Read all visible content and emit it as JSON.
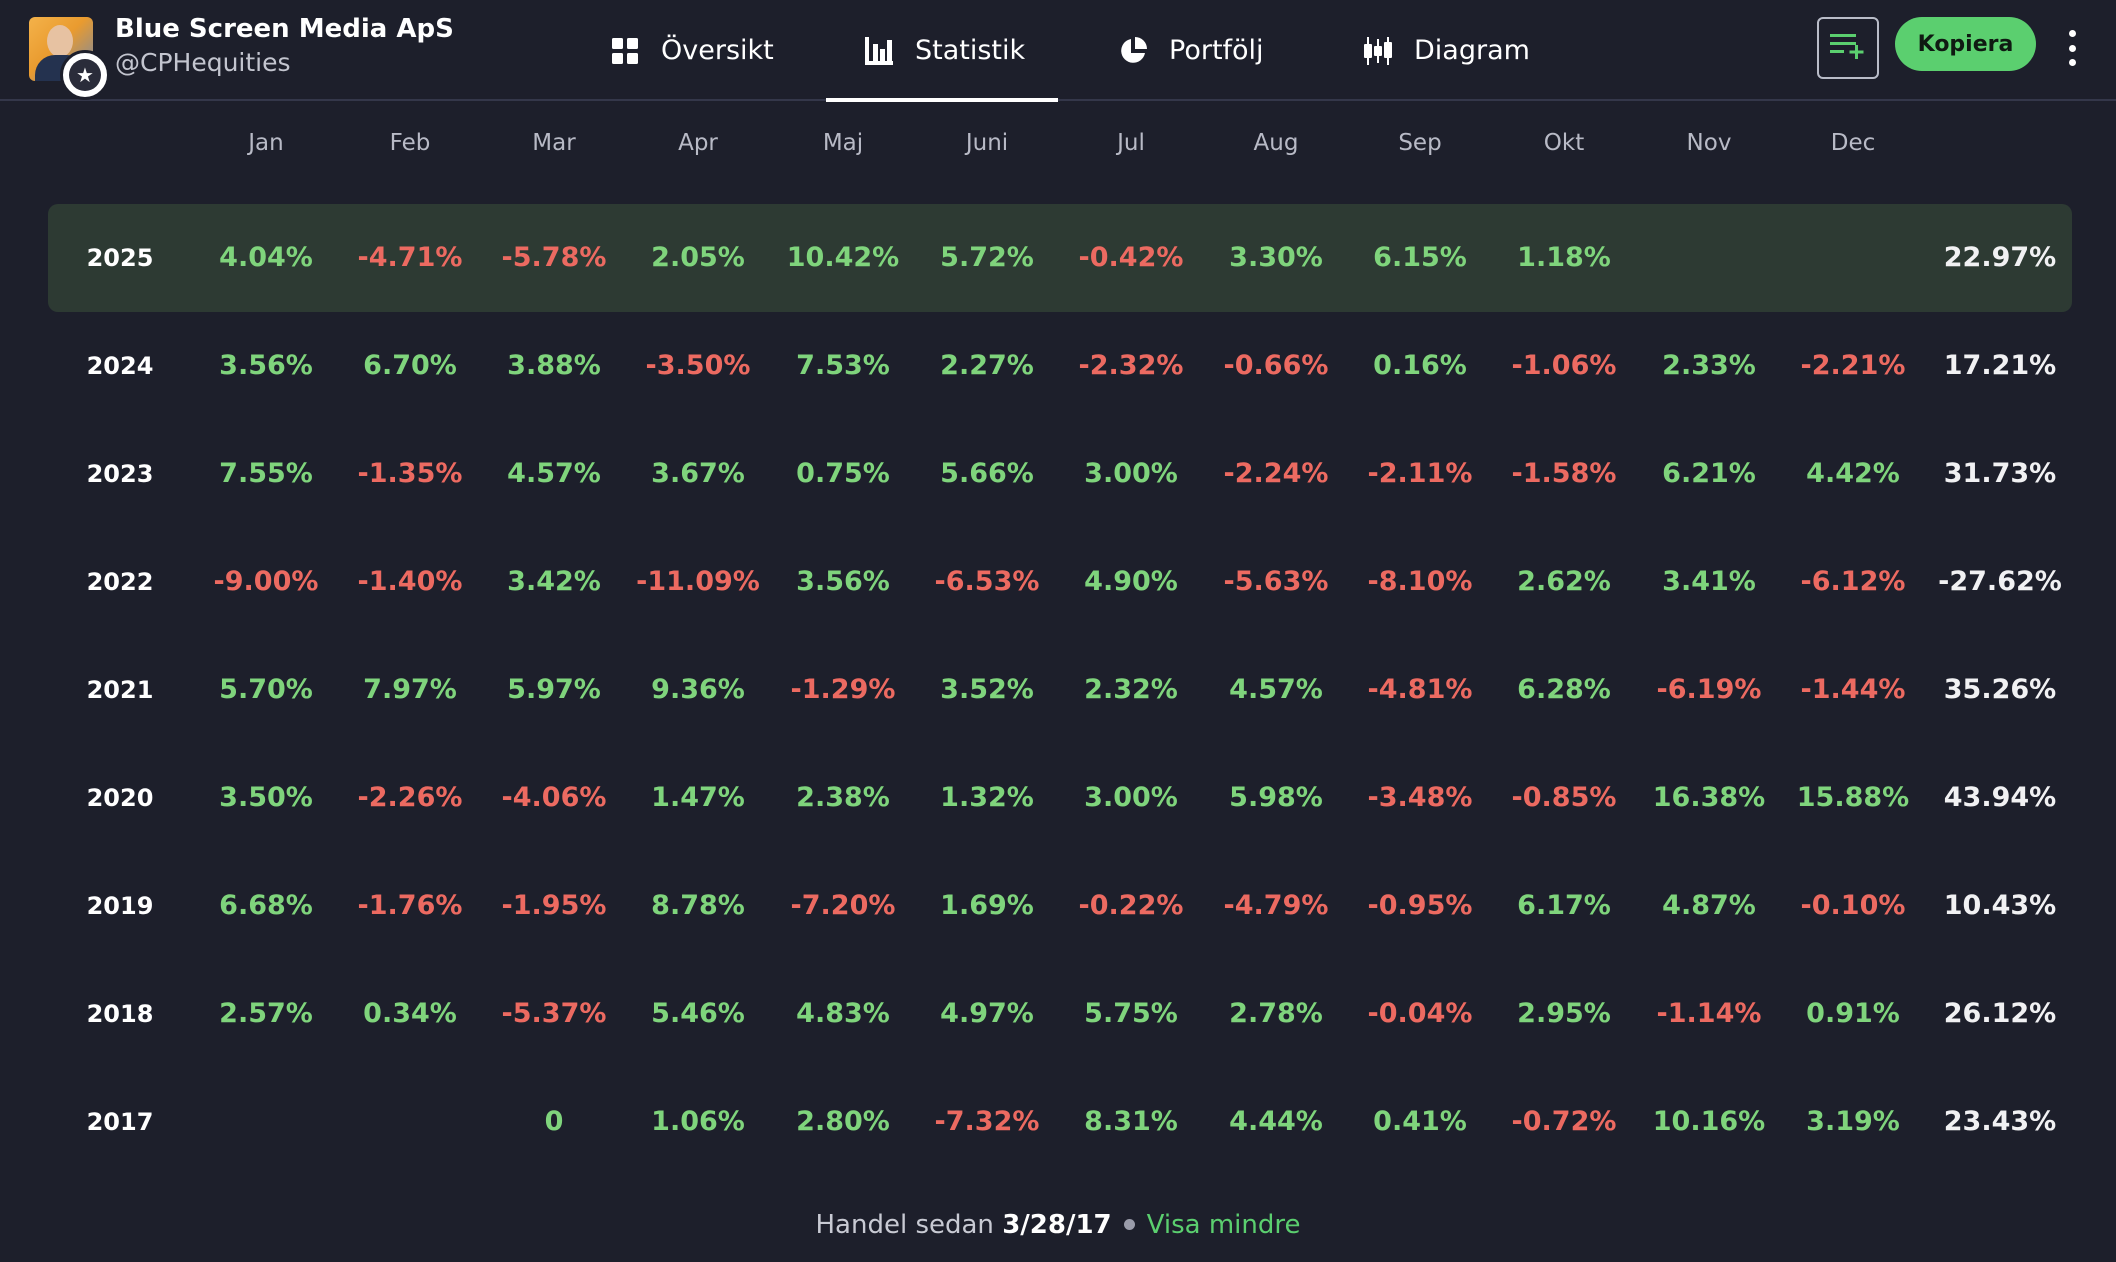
{
  "account": {
    "name": "Blue Screen Media ApS",
    "handle": "@CPHequities",
    "badge_icon": "star-icon"
  },
  "nav": {
    "tabs": [
      {
        "label": "Översikt",
        "icon": "grid-icon",
        "active": false
      },
      {
        "label": "Statistik",
        "icon": "bar-chart-icon",
        "active": true
      },
      {
        "label": "Portfölj",
        "icon": "pie-chart-icon",
        "active": false
      },
      {
        "label": "Diagram",
        "icon": "candlestick-icon",
        "active": false
      }
    ]
  },
  "actions": {
    "watchlist_icon": "add-to-list-icon",
    "copy_label": "Kopiera",
    "more_icon": "more-vertical-icon"
  },
  "colors": {
    "background": "#1d1f2b",
    "positive": "#7fd47c",
    "negative": "#ec6a61",
    "accent": "#5bcf6f",
    "highlight_row": "#2d3a33"
  },
  "table": {
    "months": [
      "Jan",
      "Feb",
      "Mar",
      "Apr",
      "Maj",
      "Juni",
      "Jul",
      "Aug",
      "Sep",
      "Okt",
      "Nov",
      "Dec"
    ],
    "rows": [
      {
        "year": "2025",
        "values": [
          "4.04%",
          "-4.71%",
          "-5.78%",
          "2.05%",
          "10.42%",
          "5.72%",
          "-0.42%",
          "3.30%",
          "6.15%",
          "1.18%",
          "",
          ""
        ],
        "total": "22.97%"
      },
      {
        "year": "2024",
        "values": [
          "3.56%",
          "6.70%",
          "3.88%",
          "-3.50%",
          "7.53%",
          "2.27%",
          "-2.32%",
          "-0.66%",
          "0.16%",
          "-1.06%",
          "2.33%",
          "-2.21%"
        ],
        "total": "17.21%"
      },
      {
        "year": "2023",
        "values": [
          "7.55%",
          "-1.35%",
          "4.57%",
          "3.67%",
          "0.75%",
          "5.66%",
          "3.00%",
          "-2.24%",
          "-2.11%",
          "-1.58%",
          "6.21%",
          "4.42%"
        ],
        "total": "31.73%"
      },
      {
        "year": "2022",
        "values": [
          "-9.00%",
          "-1.40%",
          "3.42%",
          "-11.09%",
          "3.56%",
          "-6.53%",
          "4.90%",
          "-5.63%",
          "-8.10%",
          "2.62%",
          "3.41%",
          "-6.12%"
        ],
        "total": "-27.62%"
      },
      {
        "year": "2021",
        "values": [
          "5.70%",
          "7.97%",
          "5.97%",
          "9.36%",
          "-1.29%",
          "3.52%",
          "2.32%",
          "4.57%",
          "-4.81%",
          "6.28%",
          "-6.19%",
          "-1.44%"
        ],
        "total": "35.26%"
      },
      {
        "year": "2020",
        "values": [
          "3.50%",
          "-2.26%",
          "-4.06%",
          "1.47%",
          "2.38%",
          "1.32%",
          "3.00%",
          "5.98%",
          "-3.48%",
          "-0.85%",
          "16.38%",
          "15.88%"
        ],
        "total": "43.94%"
      },
      {
        "year": "2019",
        "values": [
          "6.68%",
          "-1.76%",
          "-1.95%",
          "8.78%",
          "-7.20%",
          "1.69%",
          "-0.22%",
          "-4.79%",
          "-0.95%",
          "6.17%",
          "4.87%",
          "-0.10%"
        ],
        "total": "10.43%"
      },
      {
        "year": "2018",
        "values": [
          "2.57%",
          "0.34%",
          "-5.37%",
          "5.46%",
          "4.83%",
          "4.97%",
          "5.75%",
          "2.78%",
          "-0.04%",
          "2.95%",
          "-1.14%",
          "0.91%"
        ],
        "total": "26.12%"
      },
      {
        "year": "2017",
        "values": [
          "",
          "",
          "0",
          "1.06%",
          "2.80%",
          "-7.32%",
          "8.31%",
          "4.44%",
          "0.41%",
          "-0.72%",
          "10.16%",
          "3.19%"
        ],
        "total": "23.43%"
      }
    ]
  },
  "footer": {
    "prefix": "Handel sedan",
    "date": "3/28/17",
    "link": "Visa mindre"
  }
}
